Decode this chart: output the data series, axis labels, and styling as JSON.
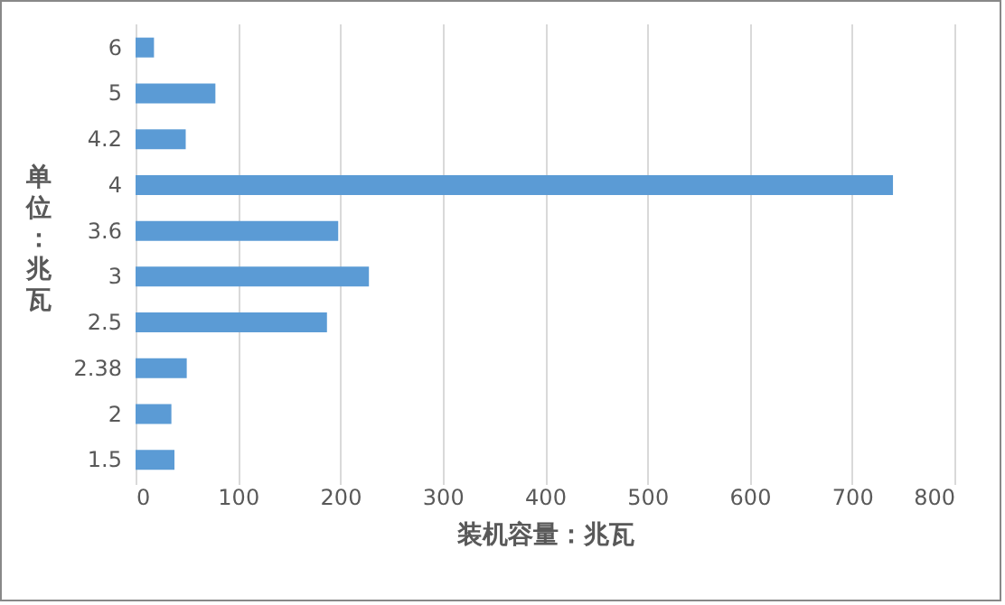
{
  "chart_data": {
    "type": "bar",
    "orientation": "horizontal",
    "xlabel": "装机容量：兆瓦",
    "ylabel": "单位：兆瓦",
    "categories": [
      "6",
      "5",
      "4.2",
      "4",
      "3.6",
      "3",
      "2.5",
      "2.38",
      "2",
      "1.5"
    ],
    "values": [
      18,
      78,
      49,
      740,
      198,
      228,
      187,
      50,
      35,
      38
    ],
    "color": "#5b9bd5",
    "xlim": [
      0,
      800
    ],
    "xticks": [
      0,
      100,
      200,
      300,
      400,
      500,
      600,
      700,
      800
    ],
    "grid": "x"
  }
}
